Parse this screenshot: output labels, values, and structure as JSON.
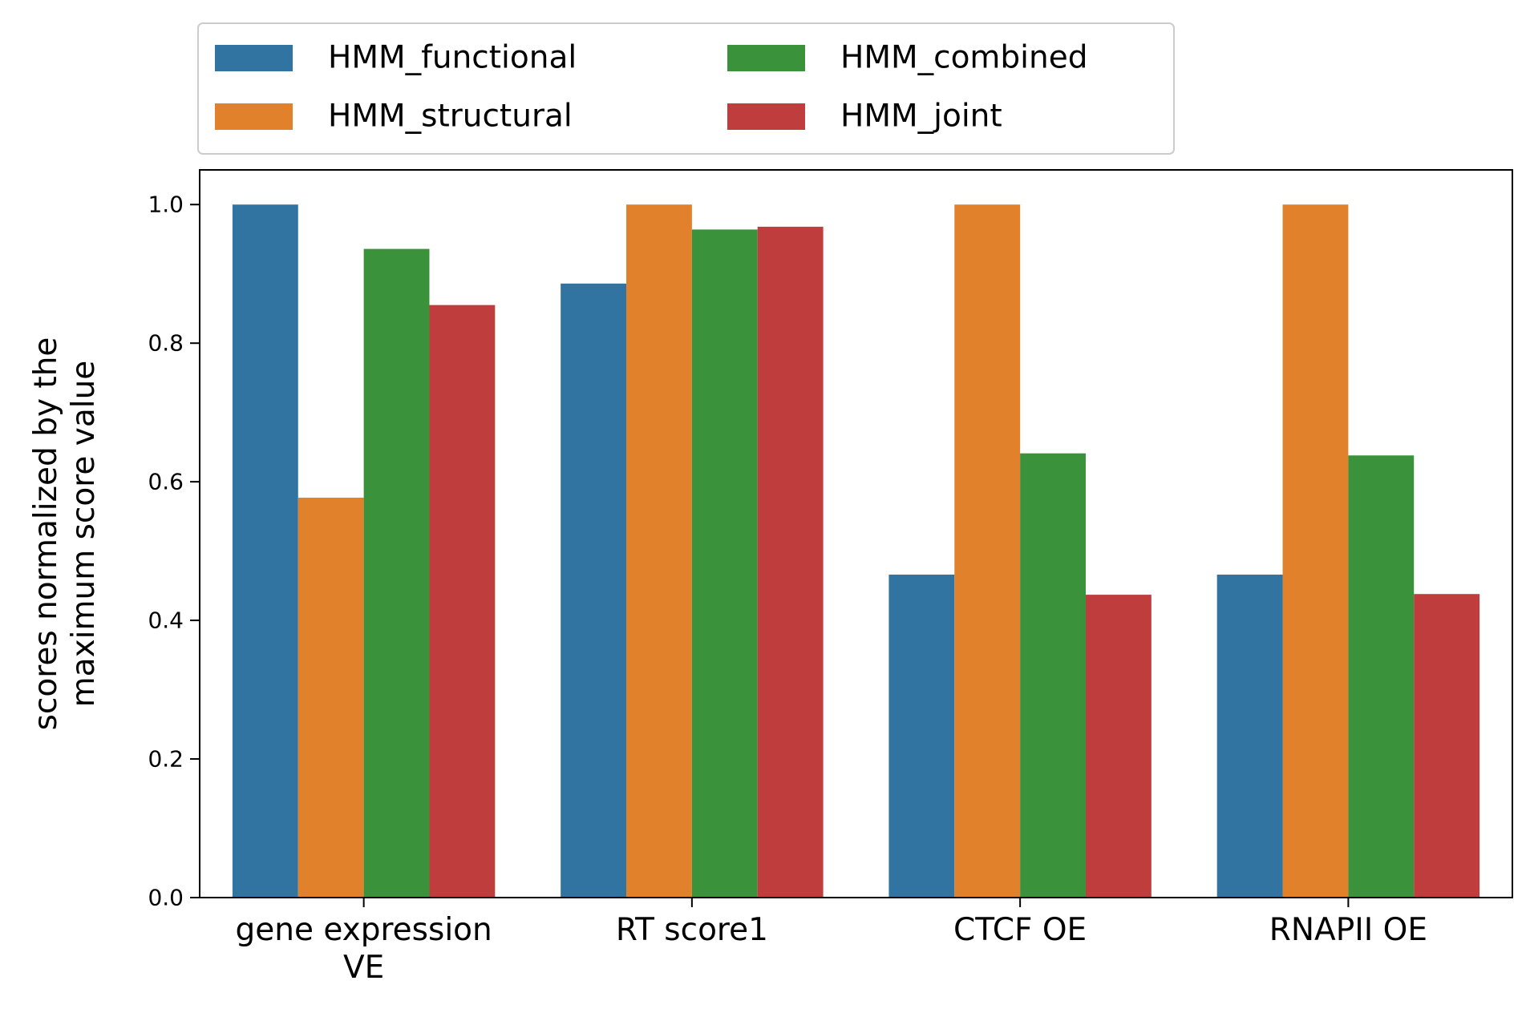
{
  "chart_data": {
    "type": "bar",
    "categories": [
      "gene expression\nVE",
      "RT score1",
      "CTCF OE",
      "RNAPII OE"
    ],
    "series": [
      {
        "name": "HMM_functional",
        "color": "#3274a1",
        "values": [
          1.0,
          0.886,
          0.466,
          0.466
        ]
      },
      {
        "name": "HMM_structural",
        "color": "#e1812c",
        "values": [
          0.577,
          1.0,
          1.0,
          1.0
        ]
      },
      {
        "name": "HMM_combined",
        "color": "#3a923a",
        "values": [
          0.936,
          0.964,
          0.641,
          0.638
        ]
      },
      {
        "name": "HMM_joint",
        "color": "#c03d3e",
        "values": [
          0.855,
          0.968,
          0.437,
          0.438
        ]
      }
    ],
    "ylabel": "scores normalized by the\nmaximum score value",
    "xlabel": "",
    "ylim": [
      0,
      1.05
    ],
    "yticks": [
      "0.0",
      "0.2",
      "0.4",
      "0.6",
      "0.8",
      "1.0"
    ],
    "grid": false,
    "legend_position": "top-left, above plot, 2 columns"
  }
}
